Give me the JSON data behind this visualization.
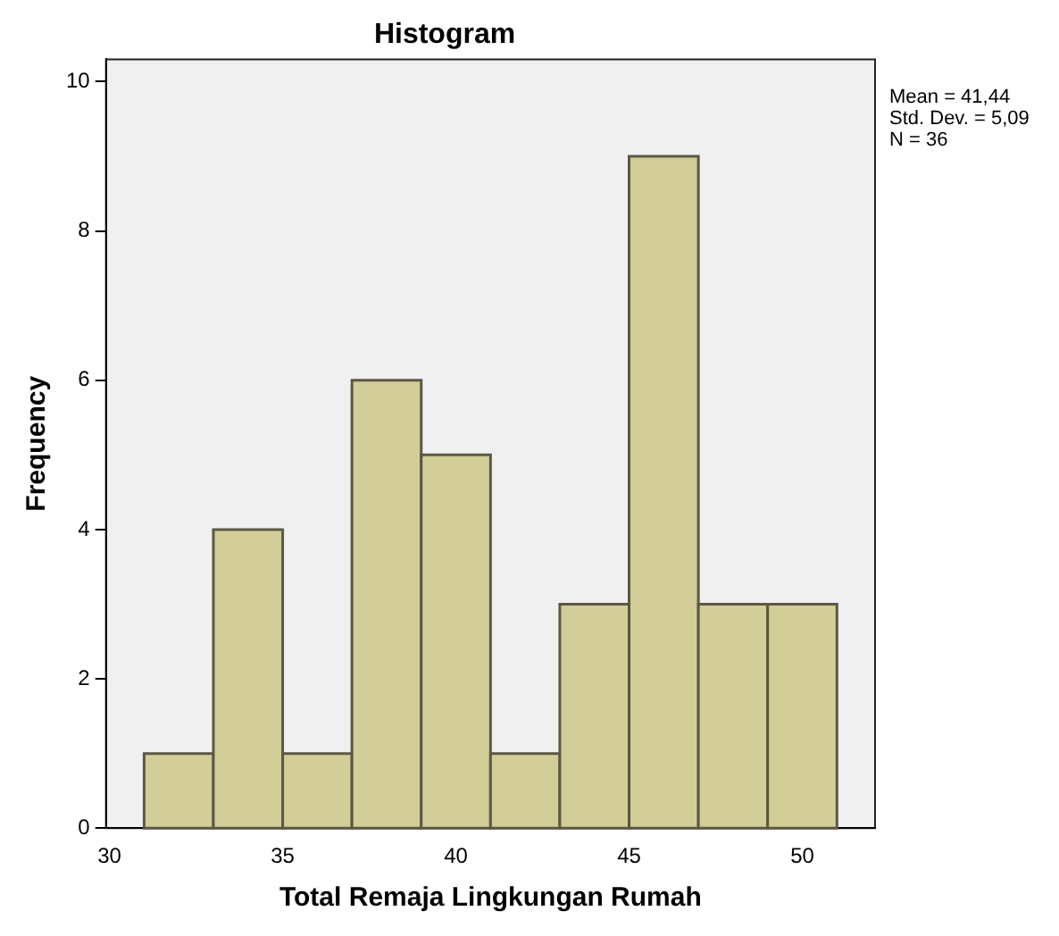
{
  "chart_data": {
    "type": "histogram",
    "title": "Histogram",
    "xlabel": "Total Remaja Lingkungan Rumah",
    "ylabel": "Frequency",
    "bins": [
      31,
      33,
      35,
      37,
      39,
      41,
      43,
      45,
      47,
      49,
      51
    ],
    "values": [
      1,
      4,
      1,
      6,
      5,
      1,
      3,
      9,
      3,
      3
    ],
    "color": "#d3ce97",
    "xlim": [
      29.9,
      52.1
    ],
    "xticks": [
      30,
      35,
      40,
      45,
      50
    ],
    "ylim": [
      0,
      10.3
    ],
    "yticks": [
      0,
      2,
      4,
      6,
      8,
      10
    ],
    "grid": false,
    "legend": false,
    "annotations": [
      "Mean = 41,44",
      "Std. Dev. = 5,09",
      "N = 36"
    ]
  }
}
